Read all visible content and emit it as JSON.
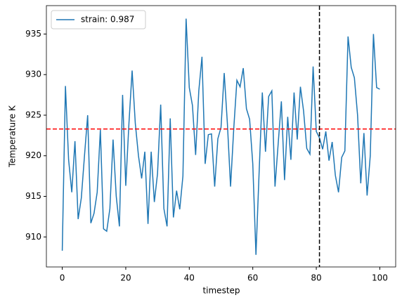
{
  "chart_data": {
    "type": "line",
    "xlabel": "timestep",
    "ylabel": "Temperature K",
    "x": [
      0,
      1,
      2,
      3,
      4,
      5,
      6,
      7,
      8,
      9,
      10,
      11,
      12,
      13,
      14,
      15,
      16,
      17,
      18,
      19,
      20,
      21,
      22,
      23,
      24,
      25,
      26,
      27,
      28,
      29,
      30,
      31,
      32,
      33,
      34,
      35,
      36,
      37,
      38,
      39,
      40,
      41,
      42,
      43,
      44,
      45,
      46,
      47,
      48,
      49,
      50,
      51,
      52,
      53,
      54,
      55,
      56,
      57,
      58,
      59,
      60,
      61,
      62,
      63,
      64,
      65,
      66,
      67,
      68,
      69,
      70,
      71,
      72,
      73,
      74,
      75,
      76,
      77,
      78,
      79,
      80,
      81,
      82,
      83,
      84,
      85,
      86,
      87,
      88,
      89,
      90,
      91,
      92,
      93,
      94,
      95,
      96,
      97,
      98,
      99,
      100
    ],
    "series": [
      {
        "name": "strain: 0.987",
        "color": "#1f77b4",
        "values": [
          908.3,
          928.6,
          919.5,
          915.5,
          921.8,
          912.2,
          914.8,
          920,
          925,
          911.7,
          912.9,
          915.5,
          923.2,
          911,
          910.7,
          913.5,
          922,
          915,
          911.3,
          927.5,
          916.3,
          924,
          930.5,
          924,
          920,
          917.2,
          920.5,
          911.6,
          920.5,
          914.3,
          917.8,
          926.3,
          913.5,
          911.3,
          924.6,
          912.4,
          915.7,
          913.4,
          917.5,
          936.9,
          928.4,
          926.2,
          920.1,
          928,
          932.2,
          919,
          922.6,
          922.7,
          916.2,
          922.1,
          923.5,
          930.2,
          924,
          916.2,
          923.3,
          929.3,
          928.5,
          930.8,
          925.8,
          924.5,
          919,
          907.8,
          918,
          927.8,
          920.5,
          927.3,
          928,
          916.2,
          921.5,
          926.7,
          917,
          924.8,
          919.5,
          927.8,
          922,
          928.5,
          925.5,
          920.9,
          920.2,
          931,
          923,
          922.2,
          920.8,
          923,
          919.4,
          921.7,
          917.6,
          915.5,
          919.8,
          920.6,
          934.7,
          930.9,
          929.6,
          925,
          916.6,
          922.8,
          915.1,
          920,
          935,
          928.4,
          928.2
        ]
      }
    ],
    "hline": {
      "value": 923.3,
      "color": "#ff0000"
    },
    "vline": {
      "value": 81,
      "color": "#000000"
    },
    "xlim": [
      -5,
      105
    ],
    "ylim": [
      906.3,
      938.5
    ],
    "xticks": [
      0,
      20,
      40,
      60,
      80,
      100
    ],
    "yticks": [
      910,
      915,
      920,
      925,
      930,
      935
    ],
    "legend": "upper left"
  }
}
